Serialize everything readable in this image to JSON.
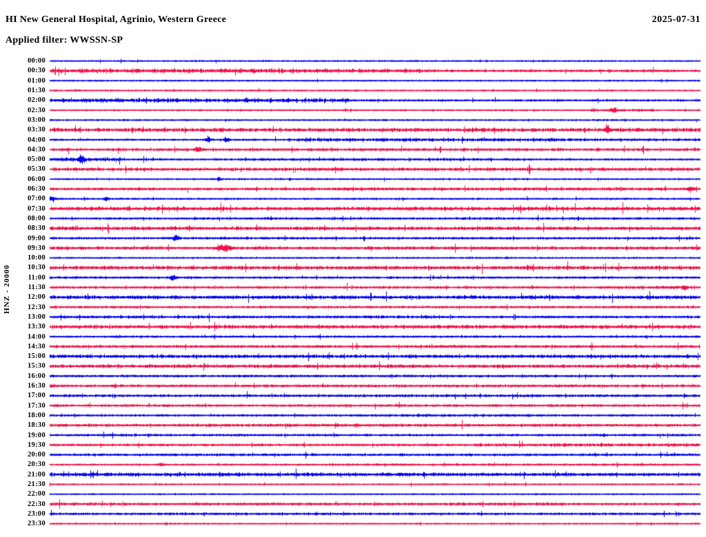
{
  "header": {
    "title": "HI New General Hospital, Agrinio, Western Greece",
    "date": "2025-07-31",
    "filter_label": "Applied filter: WWSSN-SP"
  },
  "axis": {
    "channel_label": "HNZ - 20000"
  },
  "colors": {
    "trace_blue": "#0000ee",
    "trace_red": "#ef1048",
    "text": "#000000",
    "background": "#ffffff"
  },
  "chart_data": {
    "type": "line",
    "title": "HI New General Hospital, Agrinio, Western Greece",
    "subtitle": "Applied filter: WWSSN-SP",
    "date": "2025-07-31",
    "channel": "HNZ - 20000",
    "row_duration_minutes": 30,
    "legend": "alternating blue/red 30-minute seismogram traces, 00:00 to 23:30",
    "rows": [
      {
        "t": "00:00",
        "c": "blue",
        "base": 0.55,
        "segs": [],
        "ev": []
      },
      {
        "t": "00:30",
        "c": "red",
        "base": 0.9,
        "segs": [
          [
            0,
            0.58,
            2.1
          ],
          [
            0.58,
            1,
            1.1
          ]
        ],
        "ev": []
      },
      {
        "t": "01:00",
        "c": "blue",
        "base": 0.55,
        "segs": [],
        "ev": []
      },
      {
        "t": "01:30",
        "c": "red",
        "base": 0.65,
        "segs": [],
        "ev": []
      },
      {
        "t": "02:00",
        "c": "blue",
        "base": 0.8,
        "segs": [
          [
            0,
            0.46,
            2.0
          ],
          [
            0.46,
            1,
            0.85
          ]
        ],
        "ev": []
      },
      {
        "t": "02:30",
        "c": "red",
        "base": 0.6,
        "segs": [
          [
            0.83,
            0.93,
            1.1
          ]
        ],
        "ev": [
          [
            0.866,
            3.5,
            5
          ]
        ]
      },
      {
        "t": "03:00",
        "c": "blue",
        "base": 0.6,
        "segs": [],
        "ev": []
      },
      {
        "t": "03:30",
        "c": "red",
        "base": 1.5,
        "segs": [
          [
            0,
            1,
            1.9
          ]
        ],
        "ev": [
          [
            0.856,
            4.5,
            4
          ]
        ]
      },
      {
        "t": "04:00",
        "c": "blue",
        "base": 0.8,
        "segs": [
          [
            0.38,
            0.78,
            1.7
          ],
          [
            0.78,
            1,
            1.2
          ]
        ],
        "ev": [
          [
            0.243,
            2.8,
            4
          ],
          [
            0.272,
            3.2,
            4
          ]
        ]
      },
      {
        "t": "04:30",
        "c": "red",
        "base": 1.0,
        "segs": [
          [
            0,
            1,
            1.3
          ]
        ],
        "ev": [
          [
            0.228,
            2.8,
            4
          ]
        ]
      },
      {
        "t": "05:00",
        "c": "blue",
        "base": 0.8,
        "segs": [
          [
            0,
            0.11,
            1.9
          ],
          [
            0.3,
            0.75,
            1.1
          ]
        ],
        "ev": [
          [
            0.049,
            4.5,
            4
          ]
        ]
      },
      {
        "t": "05:30",
        "c": "red",
        "base": 1.2,
        "segs": [
          [
            0,
            1,
            1.5
          ]
        ],
        "ev": []
      },
      {
        "t": "06:00",
        "c": "blue",
        "base": 0.6,
        "segs": [],
        "ev": [
          [
            0.26,
            2.6,
            3
          ]
        ]
      },
      {
        "t": "06:30",
        "c": "red",
        "base": 1.1,
        "segs": [
          [
            0.38,
            1,
            1.5
          ]
        ],
        "ev": [
          [
            0.985,
            2.2,
            5
          ]
        ]
      },
      {
        "t": "07:00",
        "c": "blue",
        "base": 0.7,
        "segs": [],
        "ev": [
          [
            0.004,
            3.2,
            4
          ],
          [
            0.086,
            2.2,
            3
          ]
        ]
      },
      {
        "t": "07:30",
        "c": "red",
        "base": 1.5,
        "segs": [
          [
            0,
            1,
            1.8
          ]
        ],
        "ev": []
      },
      {
        "t": "08:00",
        "c": "blue",
        "base": 0.95,
        "segs": [],
        "ev": []
      },
      {
        "t": "08:30",
        "c": "red",
        "base": 1.4,
        "segs": [
          [
            0,
            1,
            1.7
          ]
        ],
        "ev": []
      },
      {
        "t": "09:00",
        "c": "blue",
        "base": 0.95,
        "segs": [],
        "ev": [
          [
            0.194,
            3.2,
            4
          ]
        ]
      },
      {
        "t": "09:30",
        "c": "red",
        "base": 1.2,
        "segs": [
          [
            0,
            1,
            1.4
          ]
        ],
        "ev": [
          [
            0.268,
            4.2,
            9
          ]
        ]
      },
      {
        "t": "10:00",
        "c": "blue",
        "base": 0.6,
        "segs": [],
        "ev": []
      },
      {
        "t": "10:30",
        "c": "red",
        "base": 1.4,
        "segs": [
          [
            0,
            1,
            1.7
          ]
        ],
        "ev": []
      },
      {
        "t": "11:00",
        "c": "blue",
        "base": 0.95,
        "segs": [],
        "ev": [
          [
            0.189,
            3.2,
            4
          ]
        ]
      },
      {
        "t": "11:30",
        "c": "red",
        "base": 1.0,
        "segs": [
          [
            0.85,
            1,
            1.5
          ]
        ],
        "ev": [
          [
            0.976,
            3.2,
            4
          ]
        ]
      },
      {
        "t": "12:00",
        "c": "blue",
        "base": 1.4,
        "segs": [
          [
            0,
            1,
            1.7
          ]
        ],
        "ev": []
      },
      {
        "t": "12:30",
        "c": "red",
        "base": 1.0,
        "segs": [],
        "ev": []
      },
      {
        "t": "13:00",
        "c": "blue",
        "base": 1.0,
        "segs": [
          [
            0,
            0.6,
            1.3
          ]
        ],
        "ev": []
      },
      {
        "t": "13:30",
        "c": "red",
        "base": 1.4,
        "segs": [
          [
            0,
            1,
            1.7
          ]
        ],
        "ev": []
      },
      {
        "t": "14:00",
        "c": "blue",
        "base": 0.85,
        "segs": [],
        "ev": []
      },
      {
        "t": "14:30",
        "c": "red",
        "base": 1.2,
        "segs": [],
        "ev": []
      },
      {
        "t": "15:00",
        "c": "blue",
        "base": 1.3,
        "segs": [
          [
            0,
            1,
            1.6
          ]
        ],
        "ev": []
      },
      {
        "t": "15:30",
        "c": "red",
        "base": 1.3,
        "segs": [
          [
            0,
            1,
            1.6
          ]
        ],
        "ev": []
      },
      {
        "t": "16:00",
        "c": "blue",
        "base": 1.0,
        "segs": [],
        "ev": []
      },
      {
        "t": "16:30",
        "c": "red",
        "base": 1.15,
        "segs": [],
        "ev": []
      },
      {
        "t": "17:00",
        "c": "blue",
        "base": 1.1,
        "segs": [],
        "ev": []
      },
      {
        "t": "17:30",
        "c": "red",
        "base": 1.05,
        "segs": [],
        "ev": []
      },
      {
        "t": "18:00",
        "c": "blue",
        "base": 0.9,
        "segs": [
          [
            0.5,
            0.78,
            1.2
          ]
        ],
        "ev": []
      },
      {
        "t": "18:30",
        "c": "red",
        "base": 1.25,
        "segs": [],
        "ev": []
      },
      {
        "t": "19:00",
        "c": "blue",
        "base": 0.95,
        "segs": [],
        "ev": []
      },
      {
        "t": "19:30",
        "c": "red",
        "base": 1.0,
        "segs": [
          [
            0.65,
            1,
            1.6
          ]
        ],
        "ev": []
      },
      {
        "t": "20:00",
        "c": "blue",
        "base": 1.05,
        "segs": [],
        "ev": []
      },
      {
        "t": "20:30",
        "c": "red",
        "base": 0.7,
        "segs": [
          [
            0.42,
            1,
            0.95
          ]
        ],
        "ev": [
          [
            0.171,
            2.2,
            4
          ]
        ]
      },
      {
        "t": "21:00",
        "c": "blue",
        "base": 1.4,
        "segs": [
          [
            0,
            0.62,
            1.8
          ]
        ],
        "ev": []
      },
      {
        "t": "21:30",
        "c": "red",
        "base": 0.6,
        "segs": [],
        "ev": []
      },
      {
        "t": "22:00",
        "c": "blue",
        "base": 0.55,
        "segs": [],
        "ev": []
      },
      {
        "t": "22:30",
        "c": "red",
        "base": 1.0,
        "segs": [
          [
            0,
            0.8,
            1.3
          ]
        ],
        "ev": []
      },
      {
        "t": "23:00",
        "c": "blue",
        "base": 1.0,
        "segs": [],
        "ev": []
      },
      {
        "t": "23:30",
        "c": "red",
        "base": 0.6,
        "segs": [],
        "ev": []
      }
    ]
  }
}
